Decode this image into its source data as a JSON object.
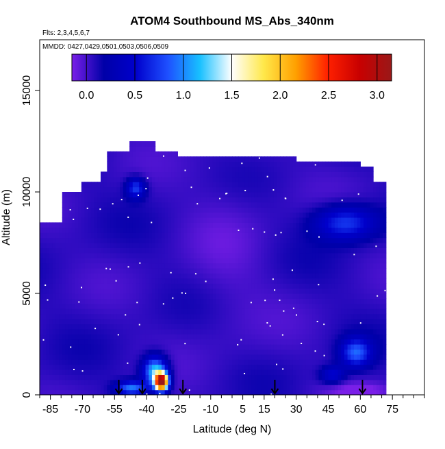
{
  "chart_data": {
    "type": "heatmap",
    "title": "ATOM4 Southbound MS_Abs_340nm",
    "subtitle_flights": "Flts: 2,3,4,5,6,7",
    "subtitle_dates": "MMDD: 0427,0429,0501,0503,0506,0509",
    "xlabel": "Latitude (deg N)",
    "ylabel": "Altitude (m)",
    "xlim": [
      -90,
      90
    ],
    "ylim": [
      0,
      17500
    ],
    "x_ticks": [
      -85,
      -70,
      -55,
      -40,
      -25,
      -10,
      5,
      15,
      30,
      45,
      60,
      75
    ],
    "x_tick_labels": [
      "-85",
      "-70",
      "-55",
      "-40",
      "-25",
      "-10",
      "5",
      "15",
      "30",
      "45",
      "60",
      "75"
    ],
    "x_minor_ticks": [
      -90,
      -80,
      -75,
      -65,
      -60,
      -50,
      -45,
      -35,
      -30,
      -20,
      -15,
      -5,
      0,
      10,
      20,
      25,
      35,
      40,
      50,
      55,
      65,
      70,
      80,
      85,
      90
    ],
    "y_ticks": [
      0,
      5000,
      10000,
      15000
    ],
    "y_tick_labels": [
      "0",
      "5000",
      "10000",
      "15000"
    ],
    "colorbar": {
      "range": [
        -0.15,
        3.15
      ],
      "ticks": [
        0.0,
        0.5,
        1.0,
        1.5,
        2.0,
        2.5,
        3.0
      ],
      "tick_labels": [
        "0.0",
        "0.5",
        "1.0",
        "1.5",
        "2.0",
        "2.5",
        "3.0"
      ],
      "colors": [
        "#7a1fe8",
        "#0000a8",
        "#0000cc",
        "#1e50ff",
        "#18c0ff",
        "#ffffff",
        "#ffe84a",
        "#ffa000",
        "#ff2000",
        "#c80000",
        "#9a1818"
      ]
    },
    "arrow_latitudes": [
      -53,
      -42,
      -23,
      20,
      61
    ],
    "data_extent": {
      "lat_range": [
        -90,
        72
      ],
      "alt_range": [
        0,
        12500
      ]
    },
    "field_description": "Mostly low values (~0.0-0.2) across all latitudes and altitudes; enhanced values near -40 to -30 deg at ~500-1500 m up to ~3.0; moderate enhancements ~0.5-1.0 near 45-65 deg at 8000-9000 m and 1500-2500 m."
  }
}
